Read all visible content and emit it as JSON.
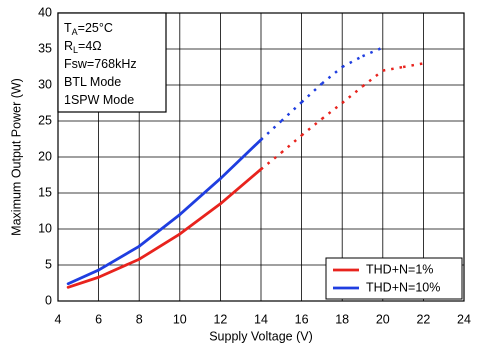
{
  "chart_data": {
    "type": "line",
    "xlabel": "Supply Voltage (V)",
    "ylabel": "Maximum Output Power (W)",
    "xlim": [
      4,
      24
    ],
    "xticks": [
      4,
      6,
      8,
      10,
      12,
      14,
      16,
      18,
      20,
      22,
      24
    ],
    "ylim": [
      0,
      40
    ],
    "yticks": [
      0,
      5,
      10,
      15,
      20,
      25,
      30,
      35,
      40
    ],
    "grid": true,
    "legend": "lower right",
    "dotted_from_x": 14,
    "annotations": [
      {
        "main": "T",
        "sub": "A",
        "rest": "=25°C"
      },
      {
        "main": "R",
        "sub": "L",
        "rest": "=4Ω"
      },
      {
        "main": "Fsw=768kHz"
      },
      {
        "main": "BTL Mode"
      },
      {
        "main": "1SPW Mode"
      }
    ],
    "series": [
      {
        "name": "THD+N=1%",
        "color": "#e8231d",
        "x": [
          4.5,
          6,
          8,
          10,
          12,
          14,
          15,
          16,
          17,
          18,
          19,
          20,
          21,
          22
        ],
        "values": [
          1.9,
          3.3,
          5.8,
          9.3,
          13.5,
          18.3,
          20.6,
          23,
          25.3,
          27.5,
          29.8,
          32,
          32.5,
          33
        ]
      },
      {
        "name": "THD+N=10%",
        "color": "#1f3ee0",
        "x": [
          4.5,
          6,
          8,
          10,
          12,
          14,
          15,
          16,
          17,
          18,
          19,
          20
        ],
        "values": [
          2.4,
          4.3,
          7.6,
          12,
          17,
          22.4,
          25,
          27.6,
          30.2,
          32.5,
          34,
          35.2
        ]
      }
    ]
  }
}
